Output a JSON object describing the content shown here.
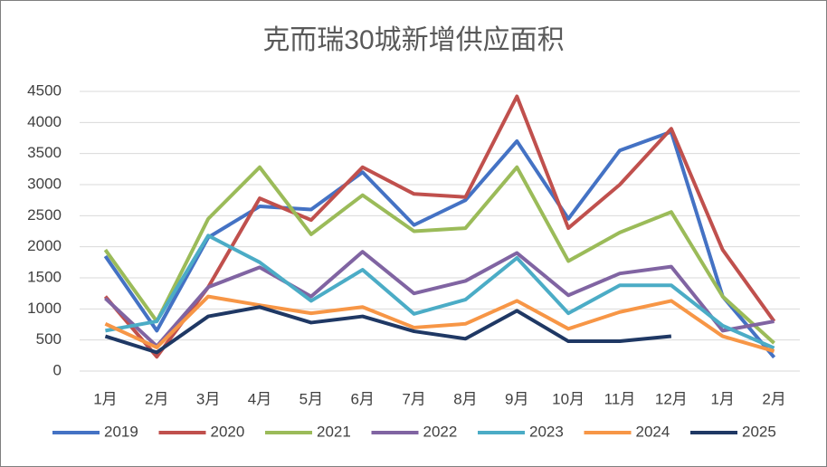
{
  "chart_data": {
    "type": "line",
    "title": "克而瑞30城新增供应面积",
    "categories": [
      "1月",
      "2月",
      "3月",
      "4月",
      "5月",
      "6月",
      "7月",
      "8月",
      "9月",
      "10月",
      "11月",
      "12月",
      "1月",
      "2月"
    ],
    "series": [
      {
        "name": "2019",
        "color": "#4472c4",
        "values": [
          1850,
          650,
          2150,
          2650,
          2600,
          3200,
          2350,
          2750,
          3700,
          2450,
          3550,
          3850,
          1200,
          220
        ]
      },
      {
        "name": "2020",
        "color": "#c0504d",
        "values": [
          1200,
          230,
          1350,
          2780,
          2430,
          3280,
          2850,
          2800,
          4420,
          2300,
          3000,
          3900,
          1950,
          800
        ]
      },
      {
        "name": "2021",
        "color": "#9bbb59",
        "values": [
          1950,
          800,
          2450,
          3280,
          2200,
          2830,
          2250,
          2300,
          3280,
          1770,
          2230,
          2560,
          1200,
          450
        ]
      },
      {
        "name": "2022",
        "color": "#8064a2",
        "values": [
          1170,
          400,
          1350,
          1670,
          1200,
          1920,
          1250,
          1450,
          1900,
          1220,
          1570,
          1680,
          650,
          800
        ]
      },
      {
        "name": "2023",
        "color": "#4bacc6",
        "values": [
          650,
          800,
          2180,
          1750,
          1130,
          1630,
          920,
          1150,
          1820,
          930,
          1380,
          1380,
          730,
          370
        ]
      },
      {
        "name": "2024",
        "color": "#f79646",
        "values": [
          760,
          380,
          1200,
          1060,
          930,
          1030,
          700,
          760,
          1130,
          680,
          950,
          1130,
          560,
          320
        ]
      },
      {
        "name": "2025",
        "color": "#1f3864",
        "values": [
          560,
          300,
          880,
          1030,
          780,
          880,
          640,
          520,
          970,
          480,
          480,
          560,
          null,
          null
        ]
      }
    ],
    "ylim": [
      0,
      4500
    ],
    "yticks": [
      0,
      500,
      1000,
      1500,
      2000,
      2500,
      3000,
      3500,
      4000,
      4500
    ],
    "grid": true
  }
}
